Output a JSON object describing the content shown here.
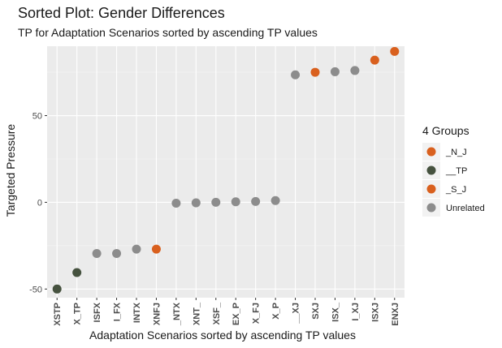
{
  "chart_data": {
    "type": "scatter",
    "title": "Sorted Plot: Gender Differences",
    "subtitle": "TP for Adaptation Scenarios sorted by ascending TP values",
    "xlabel": "Adaptation Scenarios sorted by ascending TP values",
    "ylabel": "Targeted Pressure",
    "ylim": [
      -55,
      90
    ],
    "yticks": [
      -50,
      0,
      50
    ],
    "ytick_labels": [
      "-50",
      "0",
      "50"
    ],
    "grid": true,
    "legend": {
      "title": "4 Groups",
      "placement": "right",
      "entries": [
        {
          "label": "_N_J",
          "color": "#d9601e"
        },
        {
          "label": "__TP",
          "color": "#46523f"
        },
        {
          "label": "_S_J",
          "color": "#d9601e"
        },
        {
          "label": "Unrelated",
          "color": "#8c8c8c"
        }
      ]
    },
    "categories": [
      "XSTP",
      "X_TP",
      "ISFX",
      "I_FX",
      "INTX",
      "XNFJ",
      "_NTX",
      "XNT_",
      "XSF_",
      "EX_P",
      "X_FJ",
      "X_P",
      "__XJ",
      "SXJ",
      "ISX_",
      "I_XJ",
      "ISXJ",
      "ENXJ"
    ],
    "points": [
      {
        "label": "XSTP",
        "y": -50,
        "group": "__TP"
      },
      {
        "label": "X_TP",
        "y": -40.5,
        "group": "__TP"
      },
      {
        "label": "ISFX",
        "y": -29.5,
        "group": "Unrelated"
      },
      {
        "label": "I_FX",
        "y": -29.5,
        "group": "Unrelated"
      },
      {
        "label": "INTX",
        "y": -27,
        "group": "Unrelated"
      },
      {
        "label": "XNFJ",
        "y": -27,
        "group": "_N_J"
      },
      {
        "label": "_NTX",
        "y": -0.5,
        "group": "Unrelated"
      },
      {
        "label": "XNT_",
        "y": -0.3,
        "group": "Unrelated"
      },
      {
        "label": "XSF_",
        "y": 0,
        "group": "Unrelated"
      },
      {
        "label": "EX_P",
        "y": 0.3,
        "group": "Unrelated"
      },
      {
        "label": "X_FJ",
        "y": 0.5,
        "group": "Unrelated"
      },
      {
        "label": "X_P",
        "y": 1,
        "group": "Unrelated"
      },
      {
        "label": "__XJ",
        "y": 73.5,
        "group": "Unrelated"
      },
      {
        "label": "SXJ",
        "y": 75,
        "group": "_S_J"
      },
      {
        "label": "ISX_",
        "y": 75.3,
        "group": "Unrelated"
      },
      {
        "label": "I_XJ",
        "y": 76,
        "group": "Unrelated"
      },
      {
        "label": "ISXJ",
        "y": 82,
        "group": "_S_J"
      },
      {
        "label": "ENXJ",
        "y": 87,
        "group": "_N_J"
      }
    ]
  }
}
